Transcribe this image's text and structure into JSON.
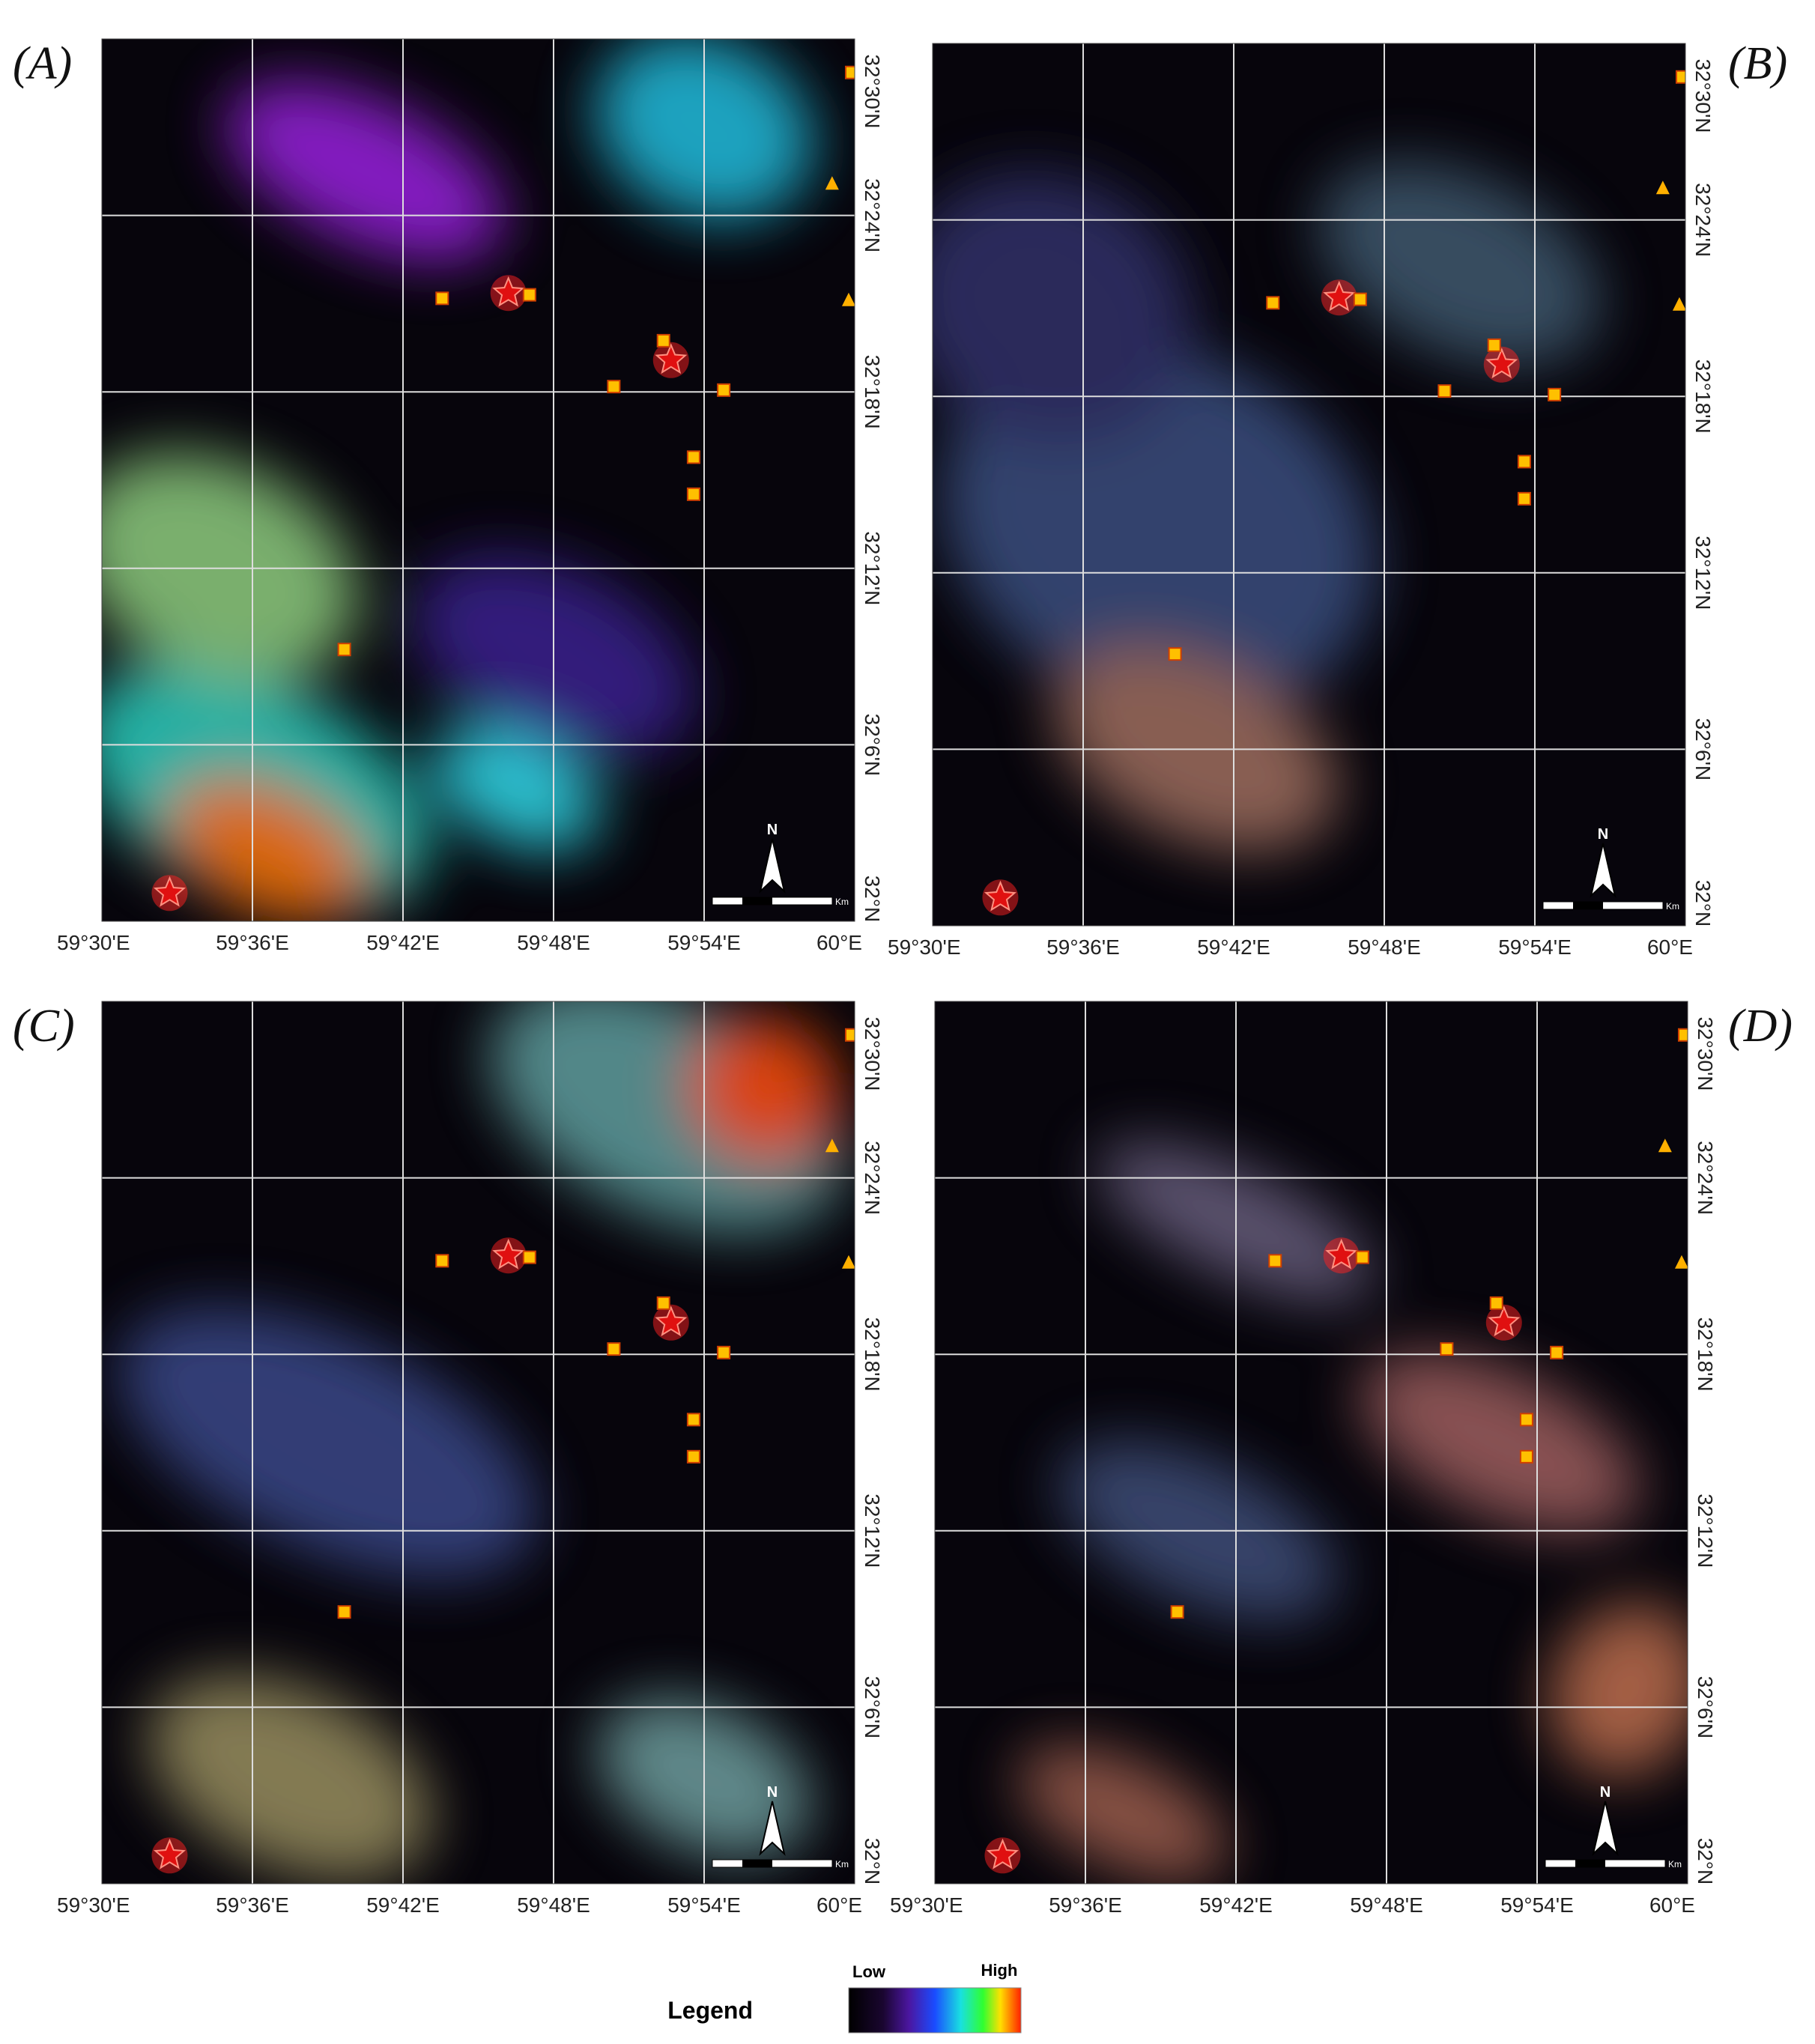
{
  "panels": [
    {
      "label": "(A)"
    },
    {
      "label": "(B)"
    },
    {
      "label": "(C)"
    },
    {
      "label": "(D)"
    }
  ],
  "lon_ticks": [
    {
      "value": 59.5,
      "label": "59°30'E"
    },
    {
      "value": 59.6,
      "label": "59°36'E"
    },
    {
      "value": 59.7,
      "label": "59°42'E"
    },
    {
      "value": 59.8,
      "label": "59°48'E"
    },
    {
      "value": 59.9,
      "label": "59°54'E"
    },
    {
      "value": 60,
      "label": "60°E"
    }
  ],
  "lat_ticks": [
    {
      "value": 32.5,
      "label": "32°30'N"
    },
    {
      "value": 32.4,
      "label": "32°24'N"
    },
    {
      "value": 32.3,
      "label": "32°18'N"
    },
    {
      "value": 32.2,
      "label": "32°12'N"
    },
    {
      "value": 32.1,
      "label": "32°6'N"
    },
    {
      "value": 32,
      "label": "32°N"
    }
  ],
  "lon_range": [
    59.5,
    60
  ],
  "lat_range": [
    32,
    32.5
  ],
  "sites": [
    {
      "kind": "star",
      "lon": 59.77,
      "lat": 32.356
    },
    {
      "kind": "star",
      "lon": 59.878,
      "lat": 32.318
    },
    {
      "kind": "star",
      "lon": 59.545,
      "lat": 32.016
    },
    {
      "kind": "square",
      "lon": 59.726,
      "lat": 32.353
    },
    {
      "kind": "square",
      "lon": 59.784,
      "lat": 32.355
    },
    {
      "kind": "square",
      "lon": 59.873,
      "lat": 32.329
    },
    {
      "kind": "square",
      "lon": 59.84,
      "lat": 32.303
    },
    {
      "kind": "square",
      "lon": 59.913,
      "lat": 32.301
    },
    {
      "kind": "square",
      "lon": 59.893,
      "lat": 32.263
    },
    {
      "kind": "square",
      "lon": 59.893,
      "lat": 32.242
    },
    {
      "kind": "square",
      "lon": 59.661,
      "lat": 32.154
    },
    {
      "kind": "square",
      "lon": 59.998,
      "lat": 32.481
    },
    {
      "kind": "triangle",
      "lon": 59.985,
      "lat": 32.418
    },
    {
      "kind": "triangle",
      "lon": 59.996,
      "lat": 32.352
    }
  ],
  "north": "N",
  "scale_unit": "Km",
  "legend": {
    "title": "Legend",
    "low": "Low",
    "high": "High"
  }
}
